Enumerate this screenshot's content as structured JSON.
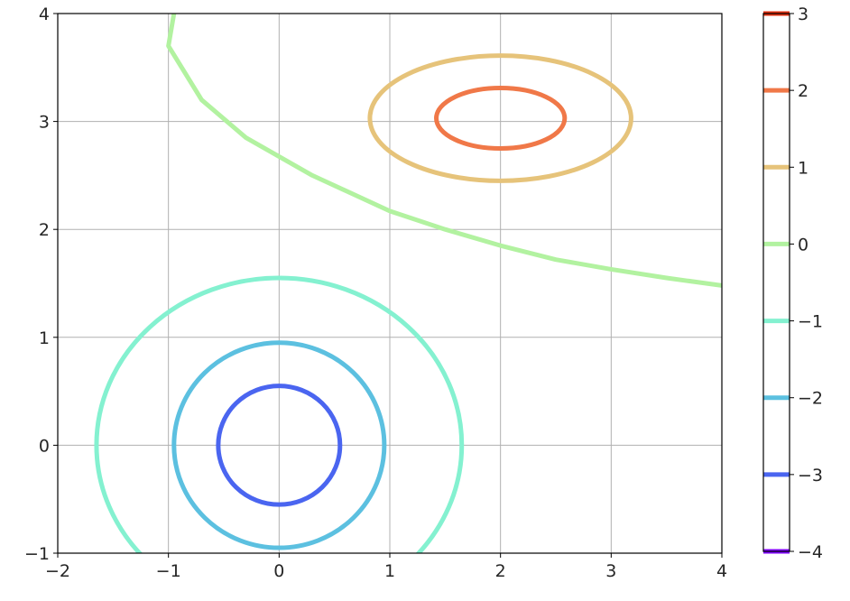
{
  "chart_data": {
    "type": "contour",
    "title": "",
    "xlabel": "",
    "ylabel": "",
    "xlim": [
      -2,
      4
    ],
    "ylim": [
      -1,
      4
    ],
    "grid": true,
    "x_ticks": [
      "−2",
      "−1",
      "0",
      "1",
      "2",
      "3",
      "4"
    ],
    "y_ticks": [
      "−1",
      "0",
      "1",
      "2",
      "3",
      "4"
    ],
    "colorbar": {
      "ticks": [
        "−4",
        "−3",
        "−2",
        "−1",
        "0",
        "1",
        "2",
        "3"
      ],
      "range": [
        -4,
        3
      ],
      "colors": {
        "-4": "#8000ff",
        "-3": "#4a65f0",
        "-2": "#5cc0e0",
        "-1": "#84f1d0",
        "0": "#b2f2a0",
        "1": "#e6c37a",
        "2": "#f07848",
        "3": "#e03010"
      }
    },
    "contours": [
      {
        "level": -3,
        "shape": "ellipse",
        "cx": 0,
        "cy": 0,
        "rx": 0.55,
        "ry": 0.55
      },
      {
        "level": -2,
        "shape": "ellipse",
        "cx": 0,
        "cy": 0,
        "rx": 0.95,
        "ry": 0.95
      },
      {
        "level": -1,
        "shape": "ellipse",
        "cx": 0,
        "cy": 0,
        "rx": 1.65,
        "ry": 1.55
      },
      {
        "level": 1,
        "shape": "ellipse",
        "cx": 2,
        "cy": 3.03,
        "rx": 1.18,
        "ry": 0.58
      },
      {
        "level": 2,
        "shape": "ellipse",
        "cx": 2,
        "cy": 3.03,
        "rx": 0.58,
        "ry": 0.28
      },
      {
        "level": 0,
        "shape": "curve",
        "points": [
          [
            -0.95,
            4.0
          ],
          [
            -1.0,
            3.7
          ],
          [
            -0.7,
            3.2
          ],
          [
            -0.3,
            2.85
          ],
          [
            0.3,
            2.5
          ],
          [
            1.0,
            2.17
          ],
          [
            1.5,
            2.0
          ],
          [
            2.0,
            1.85
          ],
          [
            2.5,
            1.72
          ],
          [
            3.0,
            1.63
          ],
          [
            3.5,
            1.55
          ],
          [
            4.0,
            1.48
          ]
        ]
      }
    ]
  }
}
